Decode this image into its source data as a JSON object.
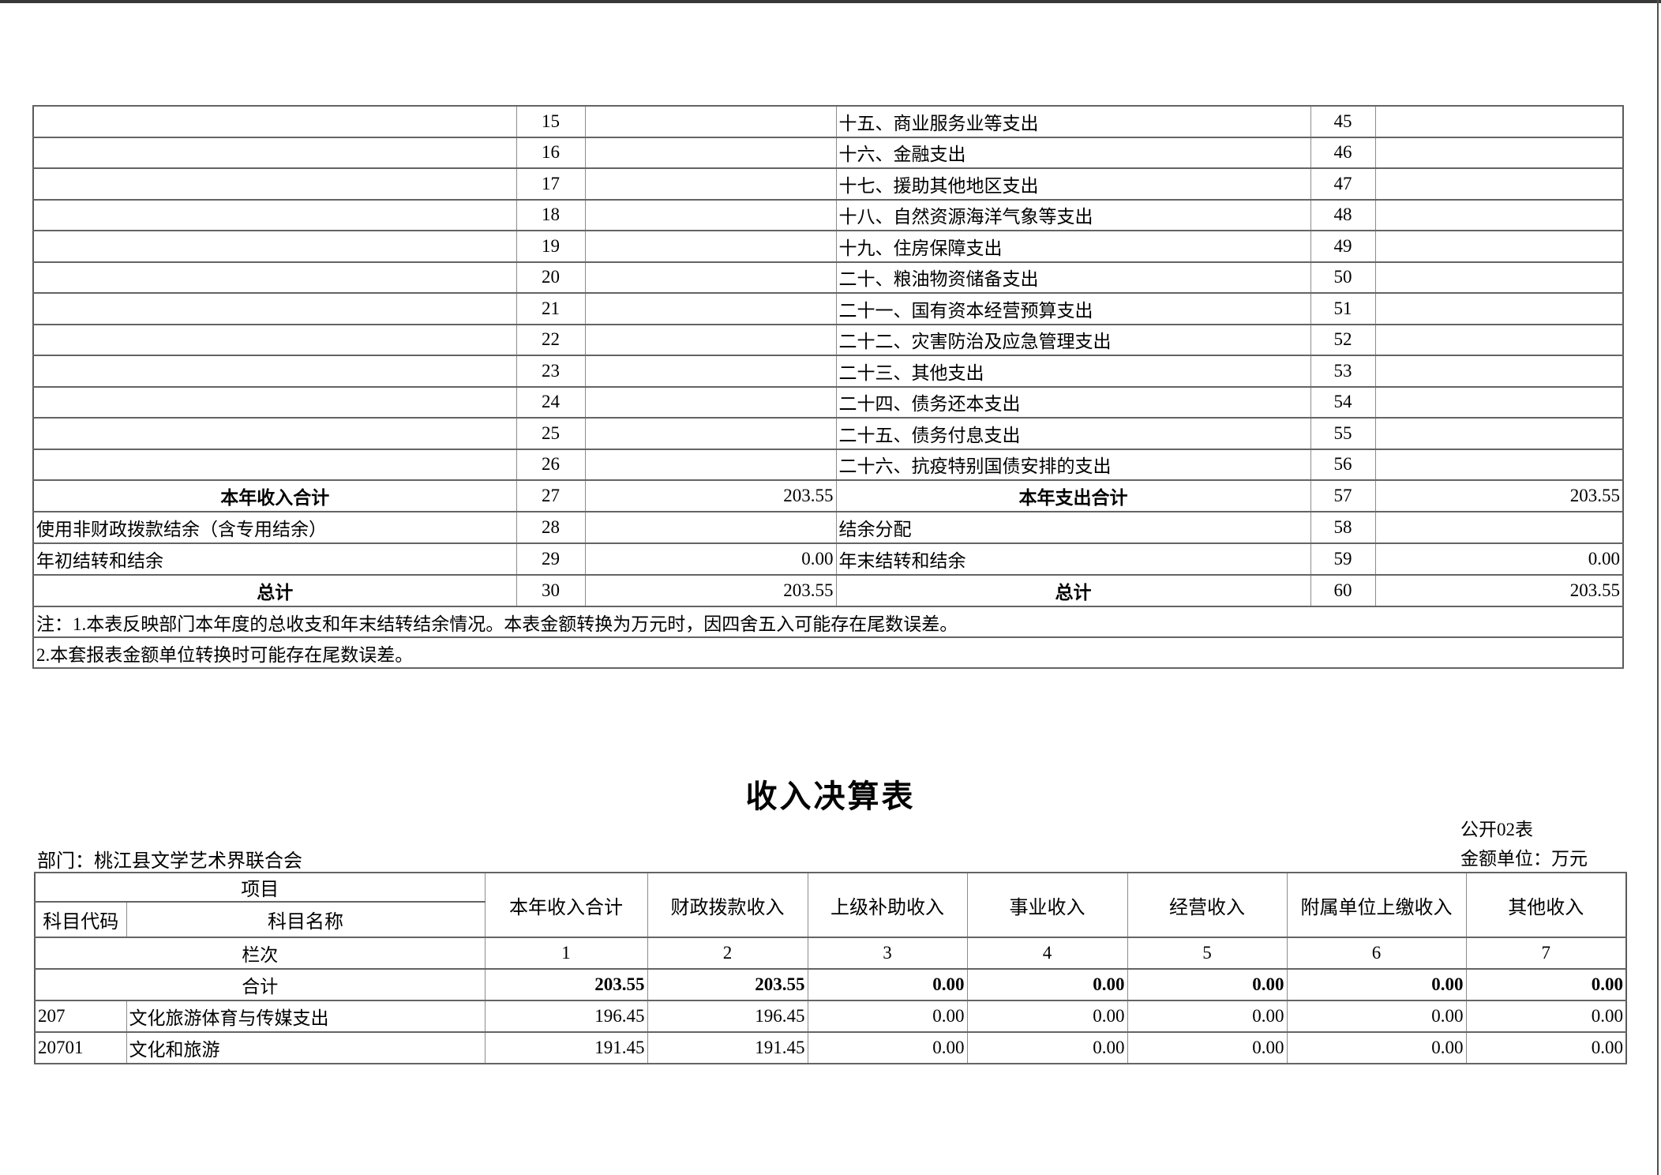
{
  "page": {
    "background": "#ffffff",
    "top_edge_color": "#383838",
    "right_edge_color": "#4f4f4f",
    "border_color": "#646464"
  },
  "summary_table": {
    "detail_rows": [
      {
        "left_no": "15",
        "right_label": "十五、商业服务业等支出",
        "right_no": "45"
      },
      {
        "left_no": "16",
        "right_label": "十六、金融支出",
        "right_no": "46"
      },
      {
        "left_no": "17",
        "right_label": "十七、援助其他地区支出",
        "right_no": "47"
      },
      {
        "left_no": "18",
        "right_label": "十八、自然资源海洋气象等支出",
        "right_no": "48"
      },
      {
        "left_no": "19",
        "right_label": "十九、住房保障支出",
        "right_no": "49"
      },
      {
        "left_no": "20",
        "right_label": "二十、粮油物资储备支出",
        "right_no": "50"
      },
      {
        "left_no": "21",
        "right_label": "二十一、国有资本经营预算支出",
        "right_no": "51"
      },
      {
        "left_no": "22",
        "right_label": "二十二、灾害防治及应急管理支出",
        "right_no": "52"
      },
      {
        "left_no": "23",
        "right_label": "二十三、其他支出",
        "right_no": "53"
      },
      {
        "left_no": "24",
        "right_label": "二十四、债务还本支出",
        "right_no": "54"
      },
      {
        "left_no": "25",
        "right_label": "二十五、债务付息支出",
        "right_no": "55"
      },
      {
        "left_no": "26",
        "right_label": "二十六、抗疫特别国债安排的支出",
        "right_no": "56"
      }
    ],
    "summary_rows": [
      {
        "left_label": "本年收入合计",
        "left_no": "27",
        "left_value": "203.55",
        "right_label": "本年支出合计",
        "right_no": "57",
        "right_value": "203.55",
        "emphasis": true
      },
      {
        "left_label": "使用非财政拨款结余（含专用结余）",
        "left_no": "28",
        "left_value": "",
        "right_label": "结余分配",
        "right_no": "58",
        "right_value": "",
        "emphasis": false
      },
      {
        "left_label": "年初结转和结余",
        "left_no": "29",
        "left_value": "0.00",
        "right_label": "年末结转和结余",
        "right_no": "59",
        "right_value": "0.00",
        "emphasis": false
      },
      {
        "left_label": "总计",
        "left_no": "30",
        "left_value": "203.55",
        "right_label": "总计",
        "right_no": "60",
        "right_value": "203.55",
        "emphasis": true
      }
    ],
    "notes": [
      "注：1.本表反映部门本年度的总收支和年末结转结余情况。本表金额转换为万元时，因四舍五入可能存在尾数误差。",
      "2.本套报表金额单位转换时可能存在尾数误差。"
    ]
  },
  "income_table": {
    "title": "收入决算表",
    "form_no": "公开02表",
    "department": "部门：桃江县文学艺术界联合会",
    "unit": "金额单位：万元",
    "header": {
      "project": "项目",
      "code": "科目代码",
      "name": "科目名称",
      "columns": [
        "本年收入合计",
        "财政拨款收入",
        "上级补助收入",
        "事业收入",
        "经营收入",
        "附属单位上缴收入",
        "其他收入"
      ],
      "lanci_label": "栏次",
      "lanci": [
        "1",
        "2",
        "3",
        "4",
        "5",
        "6",
        "7"
      ]
    },
    "rows": [
      {
        "code": "",
        "name": "合计",
        "total": true,
        "values": [
          "203.55",
          "203.55",
          "0.00",
          "0.00",
          "0.00",
          "0.00",
          "0.00"
        ]
      },
      {
        "code": "207",
        "name": "文化旅游体育与传媒支出",
        "total": false,
        "values": [
          "196.45",
          "196.45",
          "0.00",
          "0.00",
          "0.00",
          "0.00",
          "0.00"
        ]
      },
      {
        "code": "20701",
        "name": "文化和旅游",
        "total": false,
        "values": [
          "191.45",
          "191.45",
          "0.00",
          "0.00",
          "0.00",
          "0.00",
          "0.00"
        ]
      }
    ]
  }
}
